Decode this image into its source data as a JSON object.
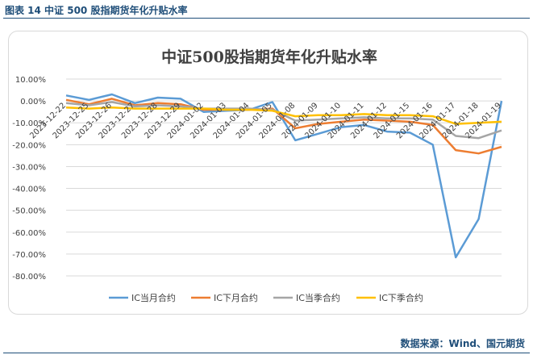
{
  "figure_label": "图表 14  中证 500 股指期货年化升贴水率",
  "source_note": "数据来源：Wind、国元期货",
  "chart_data": {
    "type": "line",
    "title": "中证500股指期货年化升贴水率",
    "xlabel": "",
    "ylabel": "",
    "categories": [
      "2023-12-22",
      "2023-12-25",
      "2023-12-26",
      "2023-12-27",
      "2023-12-28",
      "2023-12-29",
      "2024-01-02",
      "2024-01-03",
      "2024-01-04",
      "2024-01-05",
      "2024-01-08",
      "2024-01-09",
      "2024-01-10",
      "2024-01-11",
      "2024-01-12",
      "2024-01-15",
      "2024-01-16",
      "2024-01-17",
      "2024-01-18",
      "2024-01-19"
    ],
    "ylim": [
      -80,
      10
    ],
    "yticks": [
      10,
      0,
      -10,
      -20,
      -30,
      -40,
      -50,
      -60,
      -70,
      -80
    ],
    "ytick_labels": [
      "10.00%",
      "0.00%",
      "-10.00%",
      "-20.00%",
      "-30.00%",
      "-40.00%",
      "-50.00%",
      "-60.00%",
      "-70.00%",
      "-80.00%"
    ],
    "grid": true,
    "legend_position": "bottom",
    "series": [
      {
        "name": "IC当月合约",
        "color": "#5b9bd5",
        "values": [
          2.5,
          0.5,
          3.0,
          -1.0,
          1.5,
          1.0,
          -5.0,
          -4.5,
          -4.0,
          -0.5,
          -18.0,
          -15.0,
          -12.0,
          -11.0,
          -14.0,
          -14.5,
          -20.0,
          -71.5,
          -54.0,
          0.0
        ]
      },
      {
        "name": "IC下月合约",
        "color": "#ed7d31",
        "values": [
          0.5,
          -1.5,
          1.0,
          -2.0,
          -1.0,
          -1.5,
          -4.0,
          -4.0,
          -4.0,
          -3.5,
          -12.5,
          -10.5,
          -9.5,
          -8.5,
          -9.0,
          -9.5,
          -11.0,
          -22.5,
          -24.0,
          -21.0
        ]
      },
      {
        "name": "IC当季合约",
        "color": "#a5a5a5",
        "values": [
          -1.0,
          -2.0,
          -0.5,
          -2.5,
          -2.0,
          -2.5,
          -3.5,
          -3.5,
          -3.5,
          -4.0,
          -9.0,
          -8.5,
          -8.0,
          -7.5,
          -8.0,
          -8.0,
          -8.5,
          -16.0,
          -17.0,
          -13.5
        ]
      },
      {
        "name": "IC下季合约",
        "color": "#ffc000",
        "values": [
          -3.0,
          -3.5,
          -3.0,
          -3.5,
          -3.5,
          -3.5,
          -3.5,
          -4.0,
          -4.0,
          -4.5,
          -7.0,
          -6.5,
          -6.5,
          -6.0,
          -6.5,
          -6.5,
          -7.0,
          -10.5,
          -10.0,
          -9.5
        ]
      }
    ]
  }
}
